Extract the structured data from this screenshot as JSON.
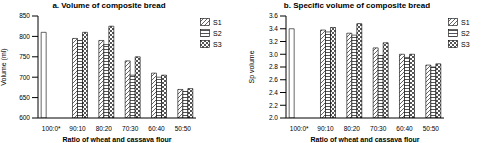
{
  "chart_data": [
    {
      "type": "bar",
      "title": "a. Volume of composite bread",
      "x_label": "Ratio of wheat and cassava flour",
      "y_label": "Volume (ml)",
      "categories": [
        "100:0*",
        "90:10",
        "80:20",
        "70:30",
        "60:40",
        "50:50"
      ],
      "series": [
        {
          "color": "#ffffff",
          "values": [
            810,
            null,
            null,
            null,
            null,
            null
          ]
        },
        {
          "name": "S1",
          "color": "#555555",
          "values": [
            null,
            795,
            790,
            740,
            710,
            670
          ]
        },
        {
          "name": "S2",
          "color": "#555555",
          "values": [
            null,
            790,
            780,
            705,
            700,
            665
          ]
        },
        {
          "name": "S3",
          "color": "#555555",
          "values": [
            null,
            810,
            825,
            750,
            705,
            672
          ]
        }
      ],
      "ylim": [
        600,
        850
      ],
      "yticks": [
        600,
        650,
        700,
        750,
        800,
        850
      ],
      "grid": false,
      "legend": "right"
    },
    {
      "type": "bar",
      "title": "b. Specific volume of composite bread",
      "x_label": "Ratio of wheat and cassava flour",
      "y_label": "Sp volume",
      "categories": [
        "100:0*",
        "90:10",
        "80:20",
        "70:30",
        "60:40",
        "50:50"
      ],
      "series": [
        {
          "color": "#ffffff",
          "values": [
            3.4,
            null,
            null,
            null,
            null,
            null
          ]
        },
        {
          "name": "S1",
          "color": "#555555",
          "values": [
            null,
            3.38,
            3.33,
            3.1,
            3.0,
            2.83
          ]
        },
        {
          "name": "S2",
          "color": "#555555",
          "values": [
            null,
            3.35,
            3.3,
            2.98,
            2.95,
            2.8
          ]
        },
        {
          "name": "S3",
          "color": "#555555",
          "values": [
            null,
            3.42,
            3.48,
            3.18,
            3.0,
            2.85
          ]
        }
      ],
      "ylim": [
        2.0,
        3.6
      ],
      "yticks": [
        {
          "value": 2,
          "label": "2.0"
        },
        {
          "value": 2.2,
          "label": "2.2"
        },
        {
          "value": 2.4,
          "label": "2.4"
        },
        {
          "value": 2.6,
          "label": "2.6"
        },
        {
          "value": 2.8,
          "label": "2.8"
        },
        {
          "value": 3,
          "label": "3.0"
        },
        {
          "value": 3.2,
          "label": "3.2"
        },
        {
          "value": 3.4,
          "label": "3.4"
        },
        {
          "value": 3.6,
          "label": "3.6"
        }
      ],
      "grid": false,
      "legend": "right"
    }
  ]
}
